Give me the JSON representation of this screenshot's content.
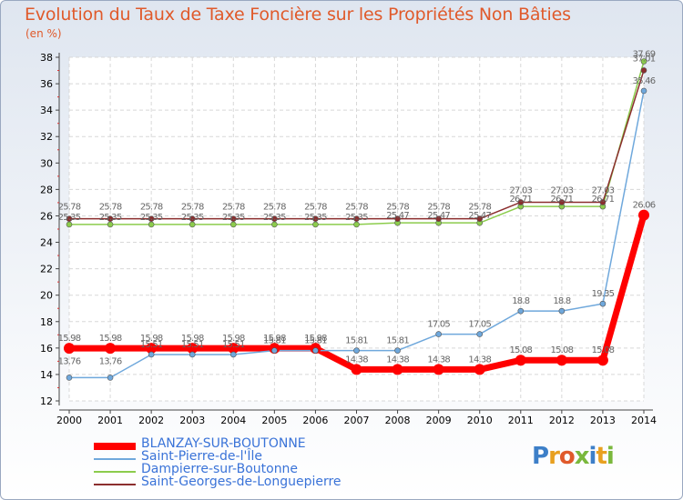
{
  "title": "Evolution du Taux de Taxe Foncière sur les Propriétés Non Bâties",
  "unit": "(en %)",
  "logo": {
    "letters": [
      "P",
      "r",
      "o",
      "x",
      "i",
      "t",
      "i"
    ],
    "colors": [
      "#3d7fc8",
      "#e8a020",
      "#e05a2b",
      "#7ab83c",
      "#3d7fc8",
      "#e8a020",
      "#7ab83c"
    ]
  },
  "chart_data": {
    "type": "line",
    "title": "Evolution du Taux de Taxe Foncière sur les Propriétés Non Bâties",
    "ylabel": "(en %)",
    "xlabel": "",
    "categories": [
      "2000",
      "2001",
      "2002",
      "2003",
      "2004",
      "2005",
      "2006",
      "2007",
      "2008",
      "2009",
      "2010",
      "2011",
      "2012",
      "2013",
      "2014"
    ],
    "ylim": [
      12,
      38
    ],
    "yticks": [
      12,
      14,
      16,
      18,
      20,
      22,
      24,
      26,
      28,
      30,
      32,
      34,
      36,
      38
    ],
    "grid": true,
    "series": [
      {
        "name": "BLANZAY-SUR-BOUTONNE",
        "color": "#ff0000",
        "width": 7,
        "values": [
          15.98,
          15.98,
          15.98,
          15.98,
          15.98,
          15.98,
          15.98,
          14.38,
          14.38,
          14.38,
          14.38,
          15.08,
          15.08,
          15.08,
          26.06
        ],
        "labels": [
          "15.98",
          "15.98",
          "15.98",
          "15.98",
          "15.98",
          "15.98",
          "15.98",
          "14.38",
          "14.38",
          "14.38",
          "14.38",
          "15.08",
          "15.08",
          "15.08",
          "26.06"
        ]
      },
      {
        "name": "Saint-Pierre-de-l'Île",
        "color": "#6fa8dc",
        "width": 1.5,
        "values": [
          13.76,
          13.76,
          15.51,
          15.51,
          15.51,
          15.81,
          15.81,
          15.81,
          15.81,
          17.05,
          17.05,
          18.8,
          18.8,
          19.35,
          35.46
        ],
        "labels": [
          "13.76",
          "13.76",
          "15.51",
          "15.51",
          "15.51",
          "15.81",
          "15.81",
          "15.81",
          "15.81",
          "17.05",
          "17.05",
          "18.8",
          "18.8",
          "19.35",
          "35.46"
        ]
      },
      {
        "name": "Dampierre-sur-Boutonne",
        "color": "#8ccc4c",
        "width": 1.5,
        "values": [
          25.35,
          25.35,
          25.35,
          25.35,
          25.35,
          25.35,
          25.35,
          25.35,
          25.47,
          25.47,
          25.47,
          26.71,
          26.71,
          26.71,
          37.69
        ],
        "labels": [
          "25.35",
          "25.35",
          "25.35",
          "25.35",
          "25.35",
          "25.35",
          "25.35",
          "25.35",
          "25.47",
          "25.47",
          "25.47",
          "26.71",
          "26.71",
          "26.71",
          "37.69"
        ]
      },
      {
        "name": "Saint-Georges-de-Longuepierre",
        "color": "#8b2e2e",
        "width": 1.5,
        "values": [
          25.78,
          25.78,
          25.78,
          25.78,
          25.78,
          25.78,
          25.78,
          25.78,
          25.78,
          25.78,
          25.78,
          27.03,
          27.03,
          27.03,
          37.01
        ],
        "labels": [
          "25.78",
          "25.78",
          "25.78",
          "25.78",
          "25.78",
          "25.78",
          "25.78",
          "25.78",
          "25.78",
          "25.78",
          "25.78",
          "27.03",
          "27.03",
          "27.03",
          "37.01"
        ]
      }
    ]
  }
}
